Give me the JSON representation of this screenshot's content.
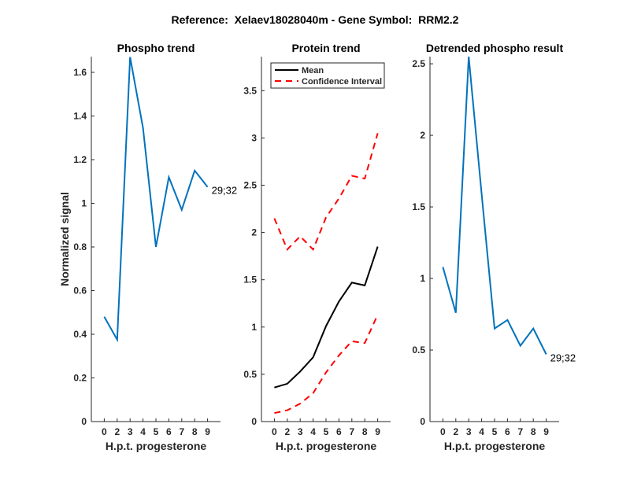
{
  "figure_title": "Reference:  Xelaev18028040m - Gene Symbol:  RRM2.2",
  "colors": {
    "blue": "#0072BD",
    "black": "#000000",
    "red": "#FF0000",
    "axis": "#262626"
  },
  "chart_data": [
    {
      "type": "line",
      "title": "Phospho trend",
      "xlabel": "H.p.t. progesterone",
      "ylabel": "Normalized signal",
      "categories": [
        "0",
        "2",
        "3",
        "4",
        "5",
        "6",
        "7",
        "8",
        "9"
      ],
      "ylim": [
        0,
        1.672
      ],
      "yticks": [
        0,
        0.2,
        0.4,
        0.6,
        0.8,
        1,
        1.2,
        1.4,
        1.6
      ],
      "ytick_labels": [
        "0",
        "0.2",
        "0.4",
        "0.6",
        "0.8",
        "1",
        "1.2",
        "1.4",
        "1.6"
      ],
      "series": [
        {
          "name": "phospho",
          "color": "#0072BD",
          "style": "solid",
          "values": [
            0.48,
            0.375,
            1.67,
            1.345,
            0.8,
            1.12,
            0.97,
            1.15,
            1.075
          ]
        }
      ],
      "annotation": "29;32"
    },
    {
      "type": "line",
      "title": "Protein trend",
      "xlabel": "H.p.t. progesterone",
      "ylabel": "",
      "categories": [
        "0",
        "2",
        "3",
        "4",
        "5",
        "6",
        "7",
        "8",
        "9"
      ],
      "ylim": [
        0,
        3.86
      ],
      "yticks": [
        0,
        0.5,
        1,
        1.5,
        2,
        2.5,
        3,
        3.5
      ],
      "ytick_labels": [
        "0",
        "0.5",
        "1",
        "1.5",
        "2",
        "2.5",
        "3",
        "3.5"
      ],
      "legend": {
        "placement": "top-right",
        "entries": [
          "Mean",
          "Confidence Interval"
        ]
      },
      "series": [
        {
          "name": "Mean",
          "color": "#000000",
          "style": "solid",
          "values": [
            0.36,
            0.4,
            0.53,
            0.68,
            1.01,
            1.27,
            1.47,
            1.44,
            1.85
          ]
        },
        {
          "name": "Confidence Interval (upper)",
          "color": "#FF0000",
          "style": "dashed",
          "values": [
            2.15,
            1.82,
            1.96,
            1.82,
            2.16,
            2.36,
            2.6,
            2.57,
            3.05
          ]
        },
        {
          "name": "Confidence Interval (lower)",
          "color": "#FF0000",
          "style": "dashed",
          "values": [
            0.09,
            0.12,
            0.19,
            0.3,
            0.52,
            0.7,
            0.85,
            0.83,
            1.13
          ]
        }
      ]
    },
    {
      "type": "line",
      "title": "Detrended phospho result",
      "xlabel": "H.p.t. progesterone",
      "ylabel": "",
      "categories": [
        "0",
        "2",
        "3",
        "4",
        "5",
        "6",
        "7",
        "8",
        "9"
      ],
      "ylim": [
        0,
        2.55
      ],
      "yticks": [
        0,
        0.5,
        1,
        1.5,
        2,
        2.5
      ],
      "ytick_labels": [
        "0",
        "0.5",
        "1",
        "1.5",
        "2",
        "2.5"
      ],
      "series": [
        {
          "name": "detrended",
          "color": "#0072BD",
          "style": "solid",
          "values": [
            1.08,
            0.76,
            2.55,
            1.59,
            0.65,
            0.71,
            0.53,
            0.65,
            0.47
          ]
        }
      ],
      "annotation": "29;32"
    }
  ]
}
